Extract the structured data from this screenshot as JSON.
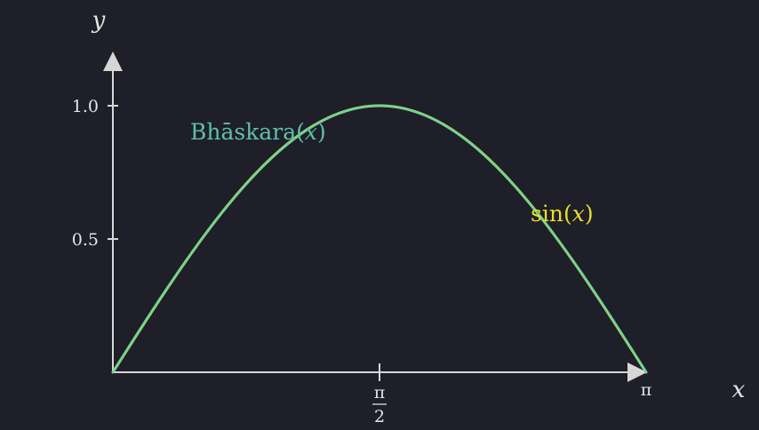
{
  "chart_data": {
    "type": "line",
    "x_label": "x",
    "y_label": "y",
    "xlim": [
      0,
      3.14159
    ],
    "ylim": [
      0,
      1.1
    ],
    "x_ticks": [
      {
        "value": 1.5708,
        "num": "π",
        "den": "2"
      },
      {
        "value": 3.14159,
        "label": "π"
      }
    ],
    "y_ticks": [
      {
        "value": 0.5,
        "label": "0.5"
      },
      {
        "value": 1.0,
        "label": "1.0"
      }
    ],
    "series": [
      {
        "name": "sin(x)",
        "name_func": "sin",
        "name_arg": "x",
        "color": "#f2e02a",
        "formula": "sin"
      },
      {
        "name": "Bhāskara(x)",
        "name_func": "Bhāskara",
        "name_arg": "x",
        "color": "#6fd39a",
        "formula": "bhaskara"
      }
    ],
    "grid": false
  }
}
